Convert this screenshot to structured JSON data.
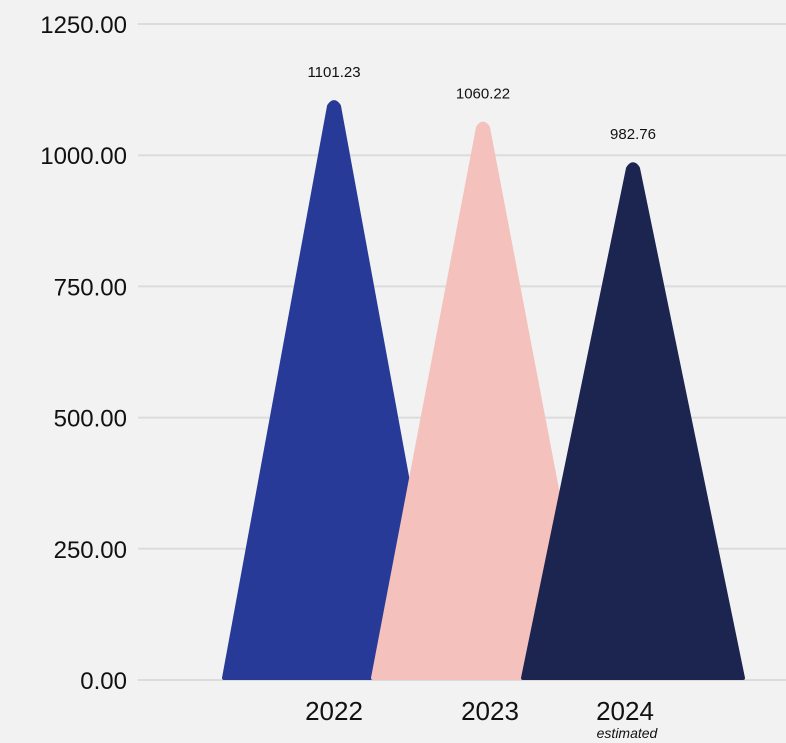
{
  "chart_data": {
    "type": "bar",
    "categories": [
      "2022",
      "2023",
      "2024"
    ],
    "category_notes": [
      "",
      "",
      "estimated"
    ],
    "values": [
      1101.23,
      1060.22,
      982.76
    ],
    "data_labels": [
      "1101.23",
      "1060.22",
      "982.76"
    ],
    "colors": [
      "#283a98",
      "#f4c1bc",
      "#1c2550"
    ],
    "ylim": [
      0,
      1250
    ],
    "y_ticks": [
      {
        "value": 0,
        "label": "0.00"
      },
      {
        "value": 250,
        "label": "250.00"
      },
      {
        "value": 500,
        "label": "500.00"
      },
      {
        "value": 750,
        "label": "750.00"
      },
      {
        "value": 1000,
        "label": "1000.00"
      },
      {
        "value": 1250,
        "label": "1250.00"
      }
    ],
    "grid": true,
    "gridline_color": "#dcdcdc",
    "text_color": "#111111",
    "background": "#f2f2f2"
  }
}
